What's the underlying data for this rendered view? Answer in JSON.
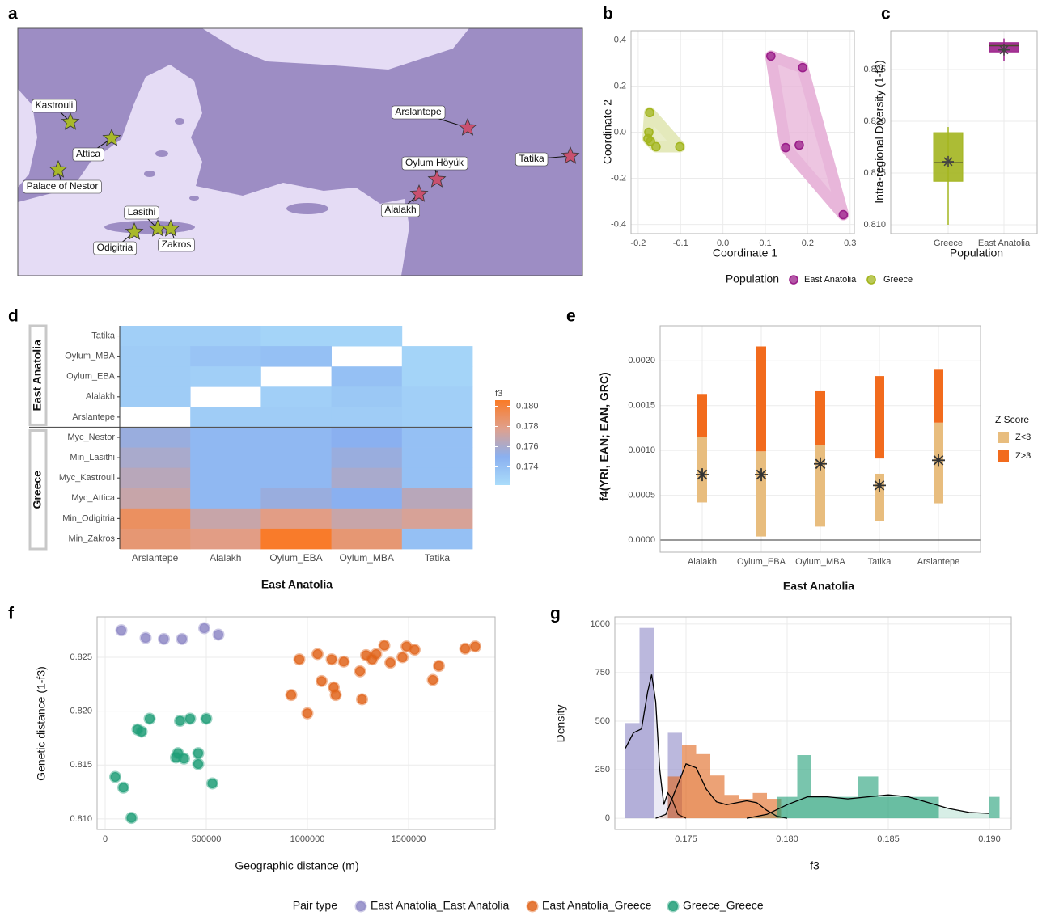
{
  "chart_data": [
    {
      "type": "map",
      "label": "a",
      "sites": [
        {
          "name": "Kastrouli",
          "color": "#a8b82a"
        },
        {
          "name": "Attica",
          "color": "#a8b82a"
        },
        {
          "name": "Palace of Nestor",
          "color": "#a8b82a"
        },
        {
          "name": "Lasithi",
          "color": "#a8b82a"
        },
        {
          "name": "Zakros",
          "color": "#a8b82a"
        },
        {
          "name": "Odigitria",
          "color": "#a8b82a"
        },
        {
          "name": "Arslantepe",
          "color": "#c9506f"
        },
        {
          "name": "Oylum Höyük",
          "color": "#c9506f"
        },
        {
          "name": "Alalakh",
          "color": "#c9506f"
        },
        {
          "name": "Tatika",
          "color": "#c9506f"
        }
      ]
    },
    {
      "type": "scatter",
      "label": "b",
      "xlabel": "Coordinate 1",
      "ylabel": "Coordinate 2",
      "xlim": [
        -0.217,
        0.31
      ],
      "ylim": [
        -0.44,
        0.44
      ],
      "xticks": [
        -0.2,
        -0.1,
        {
          "value": 0,
          "label": "0.0"
        },
        0.1,
        0.2,
        0.3
      ],
      "yticks": [
        -0.4,
        -0.2,
        {
          "value": 0,
          "label": "0.0"
        },
        0.2,
        0.4
      ],
      "legend_title": "Population",
      "series": [
        {
          "name": "East Anatolia",
          "color": "#9b1f8a",
          "hull_color": "#e8b6da",
          "x": [
            0.113,
            0.188,
            0.148,
            0.18,
            0.284
          ],
          "y": [
            0.33,
            0.28,
            -0.067,
            -0.056,
            -0.358
          ]
        },
        {
          "name": "Greece",
          "color": "#a3b51f",
          "hull_color": "#e4e9bb",
          "x": [
            -0.173,
            -0.175,
            -0.177,
            -0.171,
            -0.158,
            -0.102
          ],
          "y": [
            0.085,
            0.0,
            -0.028,
            -0.04,
            -0.063,
            -0.063
          ]
        }
      ]
    },
    {
      "type": "box",
      "label": "c",
      "xlabel": "Population",
      "ylabel": "Intra-regional Diversity (1-f3)",
      "categories": [
        "Greece",
        "East Anatolia"
      ],
      "colors": [
        "#a3b51f",
        "#9b1f8a"
      ],
      "ylim": [
        0.80914,
        0.82875
      ],
      "yticks": [
        {
          "value": 0.81,
          "label": "0.810"
        },
        0.815,
        {
          "value": 0.82,
          "label": "0.820"
        },
        0.825
      ],
      "boxes": [
        {
          "low": 0.81,
          "q1": 0.8142,
          "median": 0.816,
          "q3": 0.8189,
          "high": 0.81945,
          "mean": 0.8161
        },
        {
          "low": 0.8258,
          "q1": 0.8267,
          "median": 0.8273,
          "q3": 0.8276,
          "high": 0.828,
          "mean": 0.8269
        }
      ]
    },
    {
      "type": "heatmap",
      "label": "d",
      "xlabel": "East Anatolia",
      "legend_title": "f3",
      "groups": [
        "East Anatolia",
        "Greece"
      ],
      "rows": [
        "Tatika",
        "Oylum_MBA",
        "Oylum_EBA",
        "Alalakh",
        "Arslantepe",
        "Myc_Nestor",
        "Min_Lasithi",
        "Myc_Kastrouli",
        "Myc_Attica",
        "Min_Odigitria",
        "Min_Zakros"
      ],
      "cols": [
        "Arslantepe",
        "Alalakh",
        "Oylum_EBA",
        "Oylum_MBA",
        "Tatika"
      ],
      "values": [
        [
          0.173,
          0.173,
          0.1727,
          0.1727,
          null
        ],
        [
          0.1732,
          0.1737,
          0.174,
          null,
          0.1727
        ],
        [
          0.1732,
          0.173,
          null,
          0.174,
          0.1727
        ],
        [
          0.1732,
          null,
          0.173,
          0.1735,
          0.173
        ],
        [
          null,
          0.1732,
          0.1732,
          0.1732,
          0.173
        ],
        [
          0.1755,
          0.1745,
          0.1745,
          0.175,
          0.174
        ],
        [
          0.176,
          0.1745,
          0.1745,
          0.1755,
          0.174
        ],
        [
          0.1765,
          0.1745,
          0.1745,
          0.176,
          0.174
        ],
        [
          0.177,
          0.1745,
          0.1755,
          0.175,
          0.1765
        ],
        [
          0.179,
          0.177,
          0.178,
          0.177,
          0.1775
        ],
        [
          0.1785,
          0.178,
          0.1805,
          0.1785,
          0.174
        ]
      ],
      "colorlim": [
        0.1722,
        0.1806
      ],
      "colors": [
        "#aadcfa",
        "#8ab0f0",
        "#e0a08c",
        "#fa7a26"
      ],
      "colorticks": [
        0.174,
        0.176,
        0.178,
        {
          "value": 0.18,
          "label": "0.180"
        }
      ]
    },
    {
      "type": "range",
      "label": "e",
      "xlabel": "East Anatolia",
      "ylabel": "f4(YRI, EAN; EAN, GRC)",
      "categories": [
        "Alalakh",
        "Oylum_EBA",
        "Oylum_MBA",
        "Tatika",
        "Arslantepe"
      ],
      "ylim": [
        -0.000135,
        0.00239
      ],
      "yticks": [
        {
          "value": 0,
          "label": "0.0000"
        },
        0.0005,
        {
          "value": 0.001,
          "label": "0.0010"
        },
        0.0015,
        {
          "value": 0.002,
          "label": "0.0020"
        }
      ],
      "legend_title": "Z Score",
      "series": [
        {
          "name": "Z<3",
          "color": "#e8bd7e",
          "low": [
            0.00042,
            4e-05,
            0.00015,
            0.00021,
            0.00041
          ],
          "high": [
            0.00115,
            0.00099,
            0.00106,
            0.00074,
            0.00131
          ]
        },
        {
          "name": "Z>3",
          "color": "#f26b1d",
          "low": [
            0.00115,
            0.00099,
            0.00106,
            0.00091,
            0.00131
          ],
          "high": [
            0.00163,
            0.00216,
            0.00166,
            0.00183,
            0.0019
          ]
        }
      ],
      "mean": [
        0.00073,
        0.00073,
        0.00085,
        0.00061,
        0.00089
      ]
    },
    {
      "type": "scatter",
      "label": "f",
      "xlabel": "Geographic distance (m)",
      "ylabel": "Genetic distance (1-f3)",
      "xlim": [
        -40000,
        1928000
      ],
      "ylim": [
        0.80902,
        0.82875
      ],
      "xticks": [
        0,
        500000,
        1000000,
        1500000
      ],
      "yticks": [
        {
          "value": 0.81,
          "label": "0.810"
        },
        0.815,
        {
          "value": 0.82,
          "label": "0.820"
        },
        0.825
      ],
      "legend_title": "Pair type",
      "series": [
        {
          "name": "East Anatolia_East Anatolia",
          "color": "#8e88c6",
          "x": [
            80000,
            200000,
            290000,
            380000,
            490000,
            560000
          ],
          "y": [
            0.8275,
            0.8268,
            0.8267,
            0.8267,
            0.8277,
            0.8271
          ]
        },
        {
          "name": "East Anatolia_Greece",
          "color": "#e0641a",
          "x": [
            920000,
            960000,
            1000000,
            1050000,
            1070000,
            1120000,
            1130000,
            1140000,
            1180000,
            1260000,
            1270000,
            1290000,
            1320000,
            1340000,
            1380000,
            1410000,
            1470000,
            1490000,
            1530000,
            1620000,
            1650000,
            1780000,
            1830000
          ],
          "y": [
            0.8215,
            0.8248,
            0.8198,
            0.8253,
            0.8228,
            0.8248,
            0.8222,
            0.8215,
            0.8246,
            0.8237,
            0.8211,
            0.8252,
            0.8248,
            0.8253,
            0.8261,
            0.8245,
            0.825,
            0.826,
            0.8257,
            0.8229,
            0.8242,
            0.8258,
            0.826
          ]
        },
        {
          "name": "Greece_Greece",
          "color": "#1f9e77",
          "x": [
            50000,
            90000,
            130000,
            160000,
            180000,
            220000,
            350000,
            360000,
            370000,
            390000,
            420000,
            460000,
            460000,
            500000,
            530000
          ],
          "y": [
            0.8139,
            0.8129,
            0.8101,
            0.8183,
            0.8181,
            0.8193,
            0.8157,
            0.8161,
            0.8191,
            0.8156,
            0.8193,
            0.8161,
            0.8151,
            0.8193,
            0.8133
          ]
        }
      ]
    },
    {
      "type": "histogram",
      "label": "g",
      "xlabel": "f3",
      "ylabel": "Density",
      "xlim": [
        0.17148,
        0.19108
      ],
      "ylim": [
        -58,
        1037
      ],
      "xticks": [
        0.175,
        {
          "value": 0.18,
          "label": "0.180"
        },
        0.185,
        {
          "value": 0.19,
          "label": "0.190"
        }
      ],
      "yticks": [
        0,
        250,
        500,
        750,
        1000
      ],
      "series": [
        {
          "color": "#8e88c6",
          "bins": [
            0.172,
            0.1727,
            0.1734,
            0.1741,
            0.1748
          ],
          "counts": [
            490,
            980,
            0,
            440
          ],
          "density_x": [
            0.172,
            0.1724,
            0.1728,
            0.1731,
            0.1733,
            0.1735,
            0.1737,
            0.1739,
            0.1741,
            0.1743,
            0.1746,
            0.175
          ],
          "density_y": [
            360,
            440,
            460,
            650,
            740,
            600,
            250,
            70,
            130,
            100,
            20,
            0
          ]
        },
        {
          "color": "#e0641a",
          "bins": [
            0.1741,
            0.1748,
            0.1755,
            0.1762,
            0.1769,
            0.1776,
            0.1783,
            0.179,
            0.1797
          ],
          "counts": [
            215,
            375,
            330,
            220,
            120,
            100,
            130,
            100
          ],
          "density_x": [
            0.1735,
            0.174,
            0.1745,
            0.175,
            0.1755,
            0.176,
            0.1765,
            0.177,
            0.1775,
            0.178,
            0.1785,
            0.179,
            0.1795,
            0.18
          ],
          "density_y": [
            0,
            20,
            150,
            280,
            260,
            150,
            85,
            70,
            80,
            90,
            80,
            40,
            10,
            0
          ]
        },
        {
          "color": "#1f9e77",
          "bins": [
            0.1795,
            0.1805,
            0.1812,
            0.1835,
            0.1845,
            0.1875,
            0.19,
            0.1905
          ],
          "counts": [
            110,
            325,
            110,
            215,
            110,
            0,
            110
          ],
          "density_x": [
            0.178,
            0.179,
            0.18,
            0.181,
            0.182,
            0.183,
            0.184,
            0.185,
            0.186,
            0.187,
            0.188,
            0.189,
            0.19
          ],
          "density_y": [
            0,
            20,
            70,
            110,
            110,
            100,
            110,
            120,
            110,
            80,
            50,
            30,
            25
          ]
        }
      ]
    }
  ]
}
